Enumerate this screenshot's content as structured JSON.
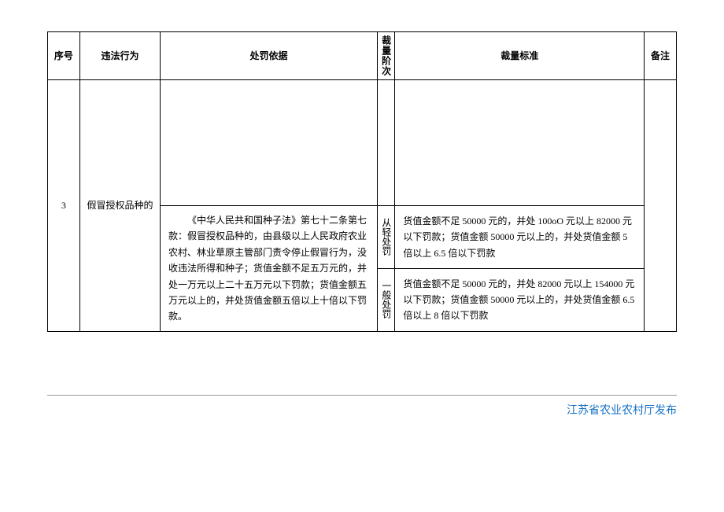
{
  "table": {
    "columns": {
      "seq": "序号",
      "behavior": "违法行为",
      "basis": "处罚依据",
      "level": "裁量阶次",
      "standard": "裁量标准",
      "remark": "备注"
    },
    "row": {
      "seq": "3",
      "behavior": "假冒授权品种的",
      "basis": "《中华人民共和国种子法》第七十二条第七款：假冒授权品种的，由县级以上人民政府农业农村、林业草原主管部门责令停止假冒行为，没收违法所得和种子；货值金额不足五万元的，并处一万元以上二十五万元以下罚款；货值金额五万元以上的，并处货值金额五倍以上十倍以下罚款。",
      "level1": "从轻处罚",
      "standard1": "货值金额不足 50000 元的，并处 100oO 元以上 82000 元以下罚款；货值金额 50000 元以上的，并处货值金额 5 倍以上 6.5 倍以下罚款",
      "level2": "一般处罚",
      "standard2": "货值金额不足 50000 元的，并处 82000 元以上 154000 元以下罚款；货值金额 50000 元以上的，并处货值金额 6.5 倍以上 8 倍以下罚款"
    }
  },
  "footer": {
    "publisher": "江苏省农业农村厅发布"
  },
  "colors": {
    "border": "#000000",
    "text": "#000000",
    "footer_text": "#1470c4",
    "footer_line": "#999999",
    "background": "#ffffff"
  }
}
